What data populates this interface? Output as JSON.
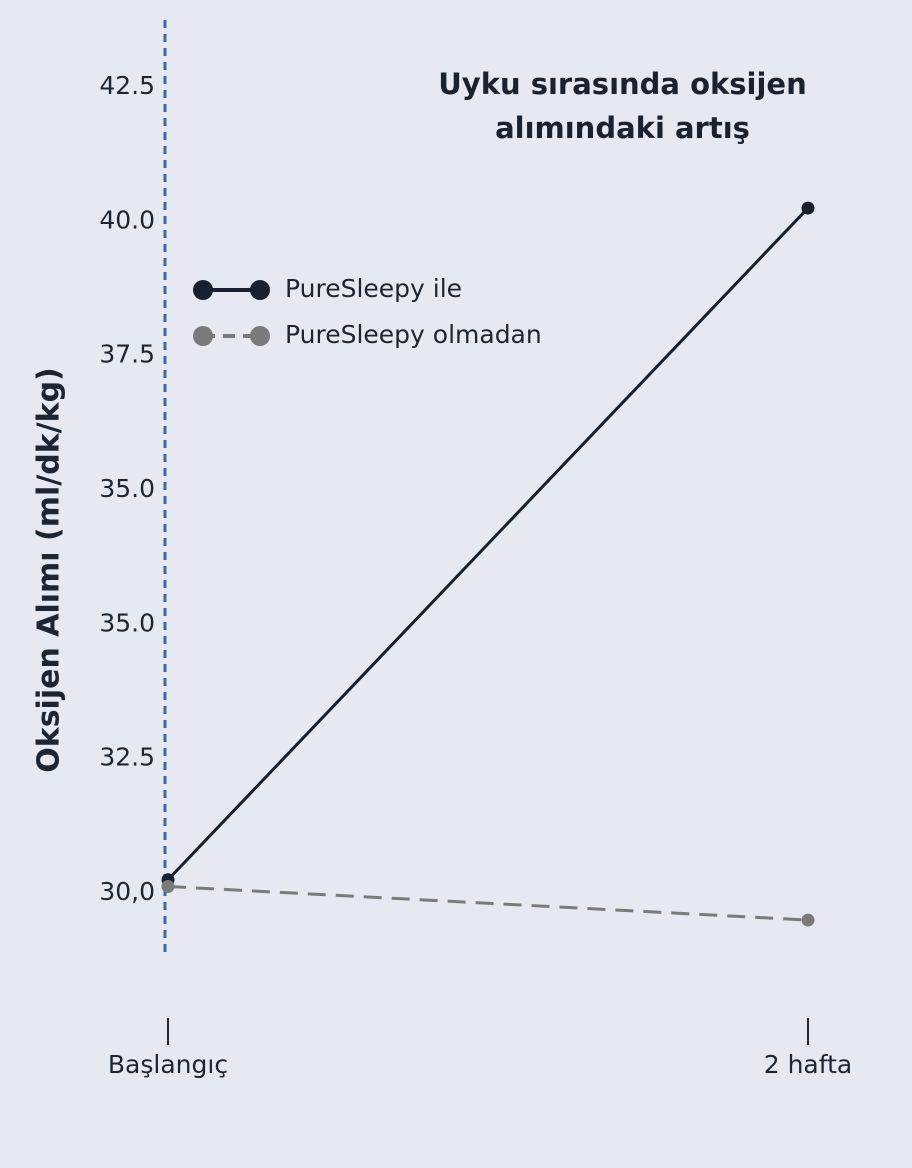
{
  "chart_data": {
    "type": "line",
    "title": "Uyku sırasında oksijen alımındaki artış",
    "ylabel": "Oksijen Alımı (ml/dk/kg)",
    "categories": [
      "Başlangıç",
      "2 hafta"
    ],
    "series": [
      {
        "name": "PureSleepy ile",
        "color": "#16202e",
        "dash": false,
        "values": [
          30.2,
          40.2
        ]
      },
      {
        "name": "PureSleepy olmadan",
        "color": "#7a7a7a",
        "dash": true,
        "values": [
          30.1,
          29.6
        ]
      }
    ],
    "ylim": [
      29.08,
      43.0
    ],
    "yticks": [
      42.5,
      {
        "value": 40,
        "label": "40.0"
      },
      37.5,
      {
        "value": 35,
        "label": "35.0"
      },
      {
        "value": 35,
        "label": "35.0"
      },
      32.5,
      {
        "value": 30,
        "label": "30,0"
      }
    ],
    "legend": "upper left",
    "grid": false
  }
}
